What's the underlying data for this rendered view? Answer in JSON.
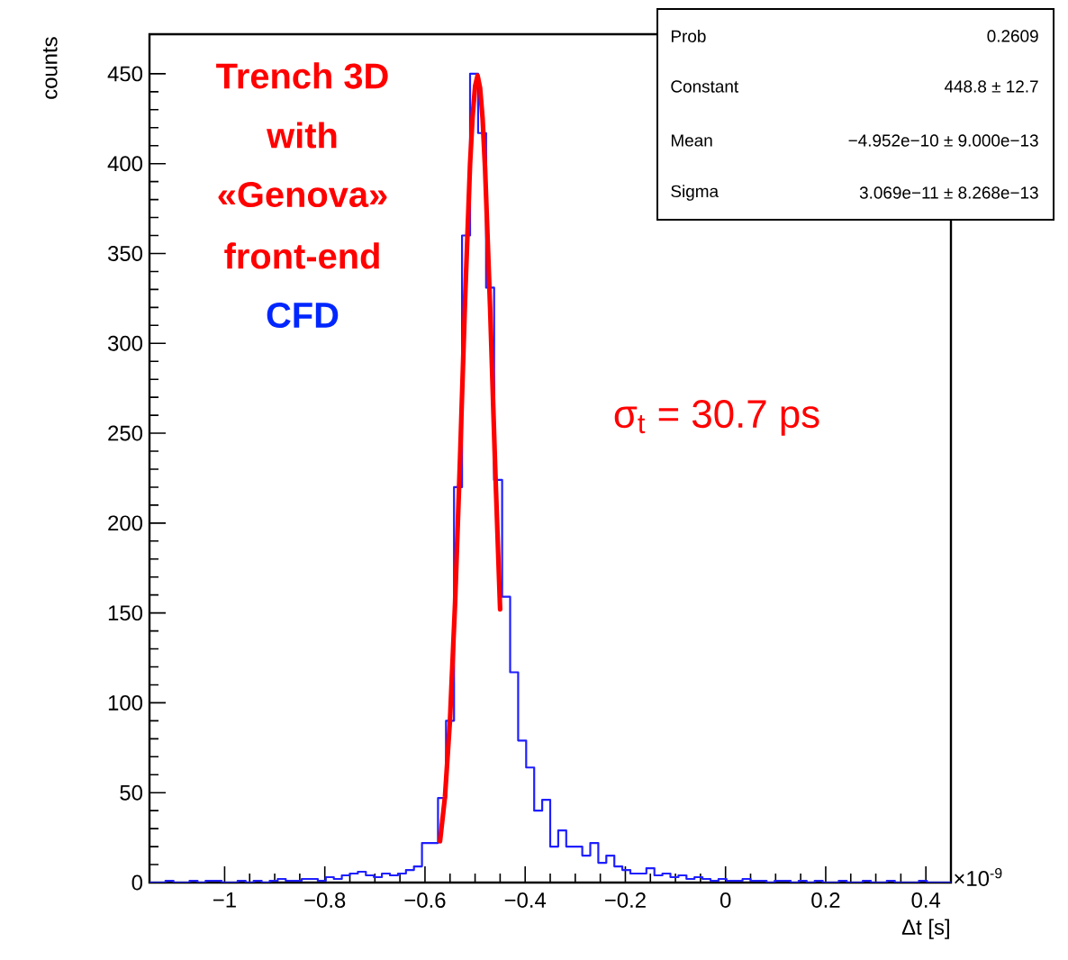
{
  "chart_data": {
    "type": "histogram",
    "xlabel": "Δt [s]",
    "ylabel": "counts",
    "bins": [
      -1.15,
      -1.134,
      -1.118,
      -1.102,
      -1.086,
      -1.07,
      -1.054,
      -1.038,
      -1.022,
      -1.006,
      -0.99,
      -0.974,
      -0.958,
      -0.942,
      -0.926,
      -0.91,
      -0.894,
      -0.878,
      -0.862,
      -0.846,
      -0.83,
      -0.814,
      -0.798,
      -0.782,
      -0.766,
      -0.75,
      -0.734,
      -0.718,
      -0.702,
      -0.686,
      -0.67,
      -0.654,
      -0.638,
      -0.622,
      -0.606,
      -0.59,
      -0.574,
      -0.558,
      -0.542,
      -0.526,
      -0.51,
      -0.494,
      -0.478,
      -0.462,
      -0.446,
      -0.43,
      -0.414,
      -0.398,
      -0.382,
      -0.366,
      -0.35,
      -0.334,
      -0.318,
      -0.302,
      -0.286,
      -0.27,
      -0.254,
      -0.238,
      -0.222,
      -0.206,
      -0.19,
      -0.174,
      -0.158,
      -0.142,
      -0.126,
      -0.11,
      -0.094,
      -0.078,
      -0.062,
      -0.046,
      -0.03,
      -0.014,
      0.002,
      0.018,
      0.034,
      0.05,
      0.066,
      0.082,
      0.098,
      0.114,
      0.13,
      0.146,
      0.162,
      0.178,
      0.194,
      0.21,
      0.226,
      0.242,
      0.258,
      0.274,
      0.29,
      0.306,
      0.322,
      0.338,
      0.354,
      0.37,
      0.386,
      0.402,
      0.418,
      0.434,
      0.45
    ],
    "values": [
      0,
      0,
      1,
      0,
      0,
      1,
      0,
      1,
      1,
      0,
      0,
      1,
      0,
      1,
      0,
      1,
      2,
      1,
      1,
      2,
      2,
      1,
      3,
      2,
      4,
      5,
      6,
      4,
      3,
      5,
      4,
      5,
      7,
      9,
      22,
      22,
      47,
      90,
      220,
      360,
      450,
      417,
      331,
      224,
      159,
      117,
      79,
      64,
      40,
      46,
      20,
      29,
      20,
      20,
      15,
      22,
      11,
      15,
      9,
      7,
      5,
      5,
      8,
      4,
      5,
      3,
      4,
      2,
      3,
      2,
      1,
      2,
      1,
      1,
      2,
      1,
      1,
      0,
      1,
      1,
      0,
      1,
      0,
      1,
      0,
      0,
      1,
      0,
      0,
      1,
      0,
      0,
      1,
      0,
      0,
      0,
      1,
      0,
      0,
      0
    ],
    "color": "#1f1fff",
    "series": [
      {
        "type": "line",
        "color": "#ff0000",
        "x": [
          -0.57,
          -0.56,
          -0.55,
          -0.54,
          -0.53,
          -0.52,
          -0.51,
          -0.505,
          -0.5,
          -0.495,
          -0.49,
          -0.485,
          -0.48,
          -0.47,
          -0.46,
          -0.45
        ],
        "values": [
          23,
          48,
          91,
          155,
          236,
          324,
          400,
          426,
          443,
          449,
          442,
          425,
          397,
          320,
          232,
          152
        ]
      }
    ],
    "xlim": [
      -1.15,
      0.45
    ],
    "ylim": [
      0,
      472
    ],
    "xticks": [
      {
        "value": -1,
        "label": "−1"
      },
      {
        "value": -0.8,
        "label": "−0.8"
      },
      {
        "value": -0.6,
        "label": "−0.6"
      },
      {
        "value": -0.4,
        "label": "−0.4"
      },
      {
        "value": -0.2,
        "label": "−0.2"
      },
      0,
      0.2,
      0.4
    ],
    "yticks": [
      0,
      50,
      100,
      150,
      200,
      250,
      300,
      350,
      400,
      450
    ],
    "grid": false,
    "annotations": [
      "Trench 3D",
      "with",
      "«Genova»",
      "front-end",
      "CFD",
      "σ$_{t}$ = 30.7 ps",
      "×10$^{-9}$",
      "Prob",
      "0.2609",
      "Constant",
      "448.8 ± 12.7",
      "Mean",
      "−4.952e−10 ± 9.000e−13",
      "Sigma",
      "3.069e−11 ± 8.268e−13"
    ]
  }
}
